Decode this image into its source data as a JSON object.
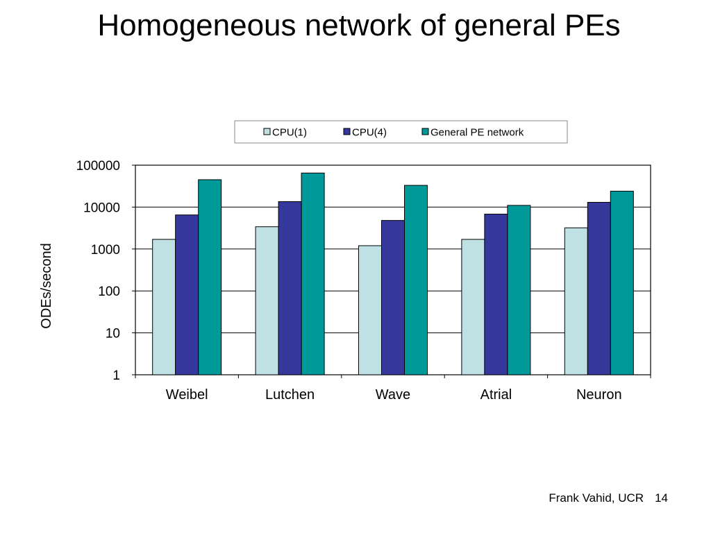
{
  "slide": {
    "title": "Homogeneous network of general PEs",
    "footer_author": "Frank Vahid, UCR",
    "page_number": "14"
  },
  "chart_data": {
    "type": "bar",
    "title": "",
    "xlabel": "",
    "ylabel": "ODEs/second",
    "yscale": "log",
    "ylim": [
      1,
      100000
    ],
    "yticks": [
      1,
      10,
      100,
      1000,
      10000,
      100000
    ],
    "grid": true,
    "legend_position": "top",
    "categories": [
      "Weibel",
      "Lutchen",
      "Wave",
      "Atrial",
      "Neuron"
    ],
    "series": [
      {
        "name": "CPU(1)",
        "color": "#bfe1e4",
        "values": [
          1700,
          3400,
          1200,
          1700,
          3200
        ]
      },
      {
        "name": "CPU(4)",
        "color": "#36389b",
        "values": [
          6500,
          13500,
          4800,
          6800,
          13000
        ]
      },
      {
        "name": "General PE network",
        "color": "#009999",
        "values": [
          45000,
          65000,
          33000,
          11000,
          24000
        ]
      }
    ]
  }
}
